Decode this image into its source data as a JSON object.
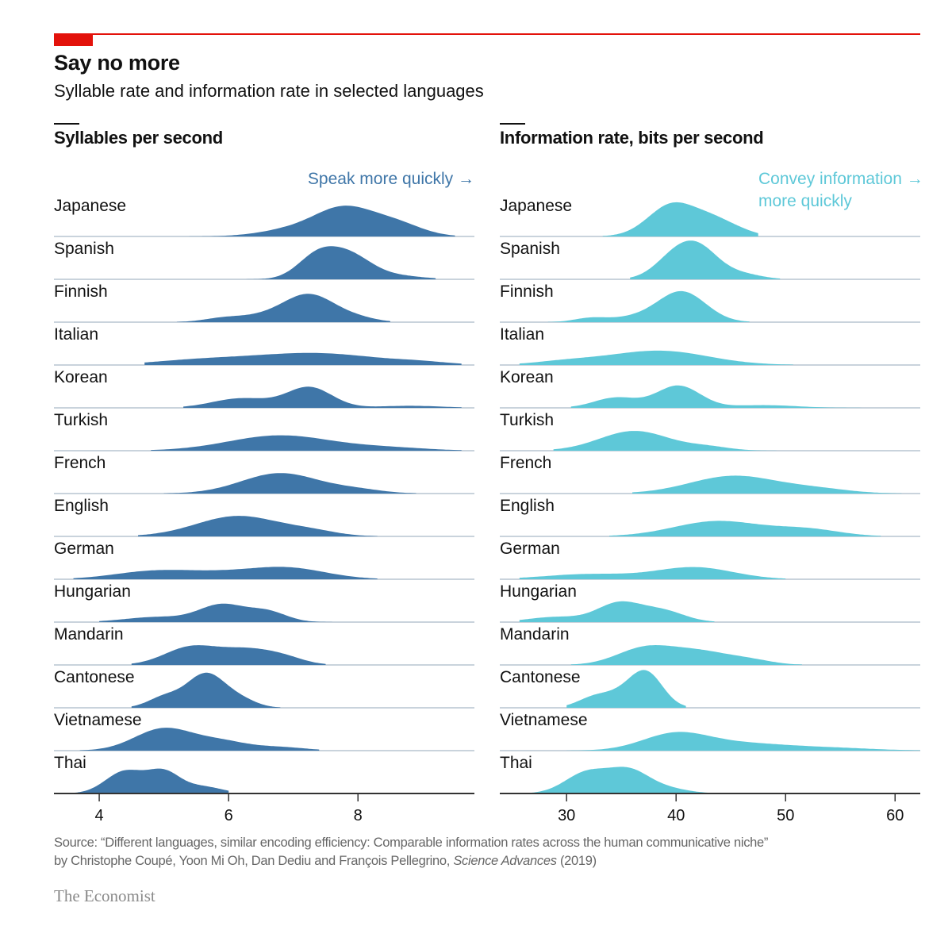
{
  "header": {
    "title": "Say no more",
    "subtitle": "Syllable rate and information rate in selected languages"
  },
  "footer": {
    "source_line1": "Source: “Different languages, similar encoding efficiency: Comparable information rates across the human communicative niche”",
    "source_line2_prefix": "by Christophe Coupé, Yoon Mi Oh, Dan Dediu and François Pellegrino, ",
    "source_journal": "Science Advances",
    "source_year": " (2019)",
    "logo": "The Economist"
  },
  "colors": {
    "brand_red": "#e3120b",
    "syllables": "#3f76a8",
    "information": "#5ec8d8",
    "gridline": "#c9d3dc"
  },
  "chart_data": [
    {
      "type": "ridgeline",
      "title": "Syllables per second",
      "annotation": [
        "Speak more quickly →"
      ],
      "xlim": [
        3.3,
        9.8
      ],
      "xticks": [
        4,
        6,
        8
      ],
      "languages": [
        "Japanese",
        "Spanish",
        "Finnish",
        "Italian",
        "Korean",
        "Turkish",
        "French",
        "English",
        "German",
        "Hungarian",
        "Mandarin",
        "Cantonese",
        "Vietnamese",
        "Thai"
      ],
      "density_components_note": "each language density approximated as sum of [mean, sd, relative height] within [min,max] support",
      "series": [
        {
          "range": [
            5.0,
            9.5
          ],
          "comp": [
            [
              7.8,
              0.45,
              0.8
            ],
            [
              8.6,
              0.4,
              0.35
            ],
            [
              7.0,
              0.5,
              0.2
            ]
          ]
        },
        {
          "range": [
            6.0,
            9.2
          ],
          "comp": [
            [
              7.35,
              0.3,
              0.6
            ],
            [
              7.85,
              0.35,
              0.7
            ],
            [
              8.6,
              0.4,
              0.1
            ]
          ]
        },
        {
          "range": [
            5.2,
            8.5
          ],
          "comp": [
            [
              7.25,
              0.4,
              0.8
            ],
            [
              5.9,
              0.3,
              0.1
            ],
            [
              6.5,
              0.4,
              0.15
            ],
            [
              8.0,
              0.3,
              0.1
            ]
          ]
        },
        {
          "range": [
            4.7,
            9.6
          ],
          "comp": [
            [
              7.3,
              1.0,
              0.35
            ],
            [
              5.5,
              0.7,
              0.12
            ],
            [
              9.0,
              0.4,
              0.05
            ]
          ]
        },
        {
          "range": [
            5.3,
            9.6
          ],
          "comp": [
            [
              7.25,
              0.35,
              0.6
            ],
            [
              6.2,
              0.45,
              0.28
            ],
            [
              8.8,
              0.5,
              0.06
            ]
          ]
        },
        {
          "range": [
            4.8,
            9.6
          ],
          "comp": [
            [
              6.8,
              0.8,
              0.45
            ],
            [
              8.5,
              0.6,
              0.08
            ]
          ]
        },
        {
          "range": [
            5.0,
            8.9
          ],
          "comp": [
            [
              6.8,
              0.6,
              0.6
            ],
            [
              8.0,
              0.4,
              0.1
            ]
          ]
        },
        {
          "range": [
            4.6,
            8.3
          ],
          "comp": [
            [
              6.15,
              0.65,
              0.6
            ],
            [
              7.3,
              0.4,
              0.12
            ]
          ]
        },
        {
          "range": [
            3.6,
            8.3
          ],
          "comp": [
            [
              4.8,
              0.6,
              0.22
            ],
            [
              6.9,
              0.6,
              0.33
            ],
            [
              5.8,
              0.6,
              0.15
            ]
          ]
        },
        {
          "range": [
            4.0,
            7.6
          ],
          "comp": [
            [
              5.9,
              0.35,
              0.5
            ],
            [
              6.6,
              0.3,
              0.3
            ],
            [
              4.9,
              0.5,
              0.15
            ]
          ]
        },
        {
          "range": [
            4.5,
            7.5
          ],
          "comp": [
            [
              5.4,
              0.4,
              0.5
            ],
            [
              6.3,
              0.45,
              0.45
            ],
            [
              6.9,
              0.3,
              0.12
            ]
          ]
        },
        {
          "range": [
            4.5,
            6.8
          ],
          "comp": [
            [
              5.65,
              0.3,
              1.0
            ],
            [
              5.0,
              0.25,
              0.3
            ],
            [
              6.2,
              0.25,
              0.2
            ]
          ]
        },
        {
          "range": [
            3.7,
            7.4
          ],
          "comp": [
            [
              5.0,
              0.45,
              0.65
            ],
            [
              5.9,
              0.4,
              0.25
            ],
            [
              6.8,
              0.4,
              0.1
            ]
          ]
        },
        {
          "range": [
            3.6,
            6.0
          ],
          "comp": [
            [
              4.4,
              0.3,
              0.65
            ],
            [
              5.0,
              0.25,
              0.6
            ],
            [
              5.6,
              0.3,
              0.2
            ]
          ]
        }
      ]
    },
    {
      "type": "ridgeline",
      "title": "Information rate, bits per second",
      "annotation": [
        "Convey information →",
        "more quickly"
      ],
      "xlim": [
        23.9,
        62.3
      ],
      "xticks": [
        30,
        40,
        50,
        60
      ],
      "languages": [
        "Japanese",
        "Spanish",
        "Finnish",
        "Italian",
        "Korean",
        "Turkish",
        "French",
        "English",
        "German",
        "Hungarian",
        "Mandarin",
        "Cantonese",
        "Vietnamese",
        "Thai"
      ],
      "series": [
        {
          "range": [
            33.3,
            47.5
          ],
          "comp": [
            [
              39.7,
              2.2,
              0.95
            ],
            [
              43.5,
              1.8,
              0.4
            ],
            [
              46.0,
              1.5,
              0.1
            ]
          ]
        },
        {
          "range": [
            35.8,
            49.5
          ],
          "comp": [
            [
              39.8,
              1.8,
              0.6
            ],
            [
              42.2,
              1.8,
              0.8
            ],
            [
              46.0,
              1.8,
              0.15
            ]
          ]
        },
        {
          "range": [
            28.3,
            46.7
          ],
          "comp": [
            [
              40.5,
              2.2,
              0.9
            ],
            [
              32.2,
              1.5,
              0.12
            ],
            [
              36.0,
              2.0,
              0.12
            ]
          ]
        },
        {
          "range": [
            25.7,
            50.7
          ],
          "comp": [
            [
              38.4,
              4.5,
              0.42
            ],
            [
              30.0,
              3.0,
              0.1
            ]
          ]
        },
        {
          "range": [
            30.4,
            62.3
          ],
          "comp": [
            [
              40.2,
              2.0,
              0.65
            ],
            [
              34.5,
              2.0,
              0.3
            ],
            [
              48.0,
              3.0,
              0.08
            ]
          ]
        },
        {
          "range": [
            28.8,
            50.7
          ],
          "comp": [
            [
              36.2,
              3.2,
              0.58
            ],
            [
              43.0,
              2.0,
              0.1
            ]
          ]
        },
        {
          "range": [
            36.0,
            60.6
          ],
          "comp": [
            [
              45.3,
              4.0,
              0.52
            ],
            [
              53.0,
              3.0,
              0.12
            ]
          ]
        },
        {
          "range": [
            33.9,
            58.7
          ],
          "comp": [
            [
              43.8,
              4.0,
              0.45
            ],
            [
              52.0,
              3.0,
              0.2
            ]
          ]
        },
        {
          "range": [
            25.7,
            50.0
          ],
          "comp": [
            [
              41.7,
              3.5,
              0.35
            ],
            [
              32.0,
              4.0,
              0.15
            ]
          ]
        },
        {
          "range": [
            25.7,
            43.5
          ],
          "comp": [
            [
              34.8,
              2.0,
              0.55
            ],
            [
              38.8,
              2.0,
              0.32
            ],
            [
              29.0,
              2.5,
              0.15
            ]
          ]
        },
        {
          "range": [
            30.4,
            51.5
          ],
          "comp": [
            [
              37.0,
              2.5,
              0.45
            ],
            [
              42.0,
              3.0,
              0.4
            ],
            [
              47.0,
              2.0,
              0.1
            ]
          ]
        },
        {
          "range": [
            30.0,
            40.9
          ],
          "comp": [
            [
              37.3,
              1.5,
              1.0
            ],
            [
              32.5,
              1.5,
              0.3
            ],
            [
              35.0,
              1.5,
              0.3
            ]
          ]
        },
        {
          "range": [
            30.0,
            62.3
          ],
          "comp": [
            [
              39.9,
              3.0,
              0.48
            ],
            [
              46.0,
              4.0,
              0.2
            ],
            [
              54.0,
              4.0,
              0.08
            ]
          ]
        },
        {
          "range": [
            25.7,
            43.2
          ],
          "comp": [
            [
              31.9,
              2.0,
              0.62
            ],
            [
              35.7,
              1.8,
              0.62
            ],
            [
              39.0,
              2.0,
              0.15
            ]
          ]
        }
      ]
    }
  ]
}
